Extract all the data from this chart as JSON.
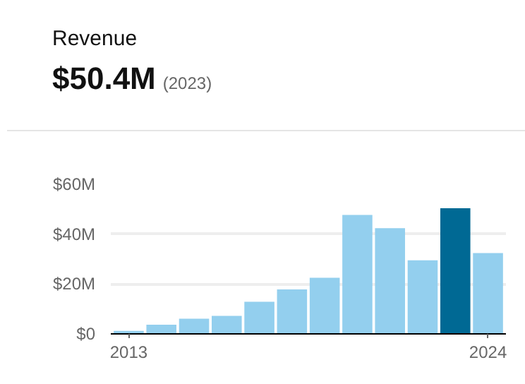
{
  "chart_data": {
    "type": "bar",
    "title": "Revenue",
    "subtitle": "$50.4M",
    "annotations": [
      "(2023)"
    ],
    "x": [
      2013,
      2014,
      2015,
      2016,
      2017,
      2018,
      2019,
      2020,
      2021,
      2022,
      2023,
      2024
    ],
    "values": [
      1.2,
      3.7,
      6.1,
      7.2,
      12.9,
      17.8,
      22.5,
      47.7,
      42.4,
      29.5,
      50.4,
      32.4
    ],
    "colors": [
      "#93cfee",
      "#93cfee",
      "#93cfee",
      "#93cfee",
      "#93cfee",
      "#93cfee",
      "#93cfee",
      "#93cfee",
      "#93cfee",
      "#93cfee",
      "#006994",
      "#93cfee"
    ],
    "xlim": [
      2012.45,
      2024.55
    ],
    "xticks": [
      2013,
      2024
    ],
    "ylim": [
      0,
      60
    ],
    "yticks": [
      {
        "value": 0,
        "label": "$0"
      },
      {
        "value": 20,
        "label": "$20M"
      },
      {
        "value": 40,
        "label": "$40M"
      },
      {
        "value": 60,
        "label": "$60M"
      }
    ],
    "grid": "y"
  }
}
